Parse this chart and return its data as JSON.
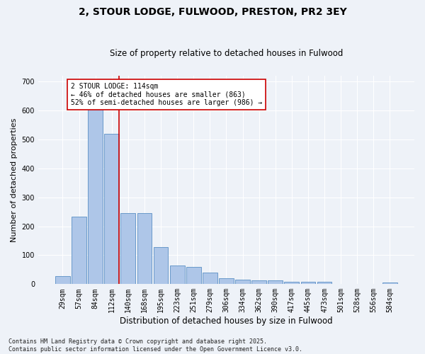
{
  "title": "2, STOUR LODGE, FULWOOD, PRESTON, PR2 3EY",
  "subtitle": "Size of property relative to detached houses in Fulwood",
  "xlabel": "Distribution of detached houses by size in Fulwood",
  "ylabel": "Number of detached properties",
  "categories": [
    "29sqm",
    "57sqm",
    "84sqm",
    "112sqm",
    "140sqm",
    "168sqm",
    "195sqm",
    "223sqm",
    "251sqm",
    "279sqm",
    "306sqm",
    "334sqm",
    "362sqm",
    "390sqm",
    "417sqm",
    "445sqm",
    "473sqm",
    "501sqm",
    "528sqm",
    "556sqm",
    "584sqm"
  ],
  "values": [
    28,
    233,
    630,
    520,
    245,
    245,
    128,
    65,
    60,
    40,
    20,
    15,
    12,
    13,
    8,
    7,
    7,
    0,
    0,
    0,
    5
  ],
  "bar_color": "#aec6e8",
  "bar_edge_color": "#5a8fc4",
  "vline_index": 3,
  "vline_color": "#cc0000",
  "annotation_text": "2 STOUR LODGE: 114sqm\n← 46% of detached houses are smaller (863)\n52% of semi-detached houses are larger (986) →",
  "annotation_box_color": "#ffffff",
  "annotation_box_edge_color": "#cc0000",
  "background_color": "#eef2f8",
  "grid_color": "#ffffff",
  "footer_line1": "Contains HM Land Registry data © Crown copyright and database right 2025.",
  "footer_line2": "Contains public sector information licensed under the Open Government Licence v3.0.",
  "ylim": [
    0,
    720
  ],
  "yticks": [
    0,
    100,
    200,
    300,
    400,
    500,
    600,
    700
  ],
  "title_fontsize": 10,
  "subtitle_fontsize": 8.5,
  "ylabel_fontsize": 8,
  "xlabel_fontsize": 8.5,
  "tick_fontsize": 7,
  "footer_fontsize": 6,
  "annot_fontsize": 7
}
